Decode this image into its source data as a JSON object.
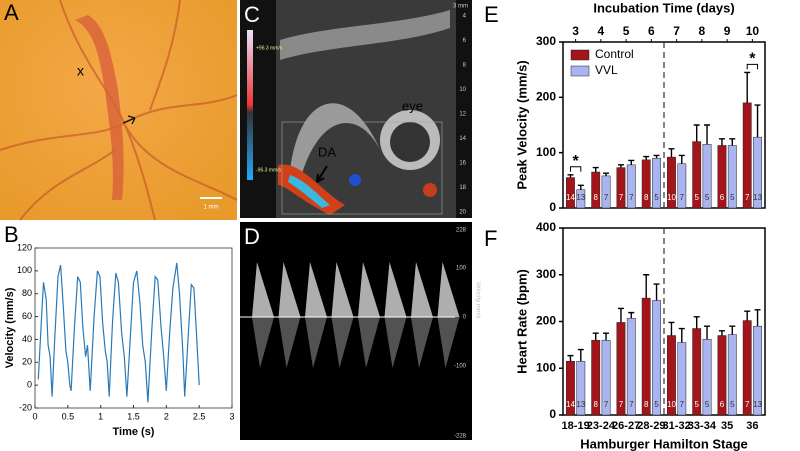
{
  "panel_labels": [
    "A",
    "B",
    "C",
    "D",
    "E",
    "F"
  ],
  "images": {
    "A": {
      "marker": "x",
      "scale": "1 mm"
    },
    "C": {
      "depth_unit": "3 mm",
      "depth_ticks": [
        4,
        6,
        8,
        10,
        12,
        14,
        16,
        18,
        20
      ],
      "vel_max": "+96.3 mm/s",
      "vel_min": "-96.3 mm/s",
      "eye": "eye",
      "vessel": "DA"
    },
    "D": {
      "scale": [
        "228",
        "100",
        "0",
        "-100",
        "-228"
      ],
      "axis_title": "Velocity mm/s"
    }
  },
  "chart_data": [
    {
      "type": "line",
      "xlabel": "Time (s)",
      "ylabel": "Velocity (mm/s)",
      "color": "#2a7ab8",
      "xlim": [
        0,
        3
      ],
      "xticks": [
        0,
        0.5,
        1,
        1.5,
        2,
        2.5,
        3
      ],
      "ylim": [
        -20,
        120
      ],
      "yticks": [
        -20,
        0,
        20,
        40,
        60,
        80,
        100,
        120
      ],
      "x": [
        0.05,
        0.1,
        0.13,
        0.17,
        0.2,
        0.23,
        0.26,
        0.3,
        0.35,
        0.39,
        0.43,
        0.47,
        0.5,
        0.53,
        0.55,
        0.6,
        0.65,
        0.69,
        0.73,
        0.77,
        0.8,
        0.84,
        0.9,
        0.95,
        0.99,
        1.03,
        1.07,
        1.1,
        1.13,
        1.18,
        1.23,
        1.27,
        1.32,
        1.36,
        1.4,
        1.45,
        1.5,
        1.55,
        1.6,
        1.64,
        1.68,
        1.72,
        1.78,
        1.83,
        1.87,
        1.92,
        1.96,
        2.0,
        2.05,
        2.1,
        2.16,
        2.2,
        2.25,
        2.28,
        2.33,
        2.38,
        2.42,
        2.46,
        2.5
      ],
      "values": [
        5,
        60,
        90,
        75,
        35,
        25,
        -10,
        40,
        95,
        105,
        70,
        30,
        20,
        0,
        -5,
        50,
        95,
        90,
        50,
        25,
        35,
        -5,
        60,
        100,
        95,
        55,
        30,
        20,
        -10,
        55,
        98,
        90,
        45,
        25,
        -10,
        40,
        90,
        100,
        70,
        35,
        20,
        -15,
        50,
        95,
        92,
        50,
        25,
        -5,
        45,
        85,
        107,
        80,
        30,
        -10,
        40,
        88,
        85,
        45,
        0
      ]
    },
    {
      "type": "bar",
      "ylabel": "Peak Velocity (mm/s)",
      "top_xlabel": "Incubation Time (days)",
      "top_categories": [
        3,
        4,
        5,
        6,
        7,
        8,
        9,
        10
      ],
      "ylim": [
        0,
        300
      ],
      "yticks": [
        0,
        100,
        200,
        300
      ],
      "legend": "upper left",
      "series": [
        {
          "name": "Control",
          "color": "#a3141b",
          "values": [
            55,
            65,
            73,
            87,
            92,
            120,
            113,
            190
          ],
          "errors": [
            5,
            8,
            5,
            6,
            15,
            30,
            12,
            55
          ],
          "n": [
            14,
            8,
            7,
            8,
            10,
            5,
            6,
            7
          ]
        },
        {
          "name": "VVL",
          "color": "#a9b4f0",
          "values": [
            33,
            58,
            78,
            90,
            80,
            115,
            113,
            128
          ],
          "errors": [
            8,
            5,
            8,
            5,
            15,
            35,
            12,
            58
          ],
          "n": [
            13,
            7,
            7,
            5,
            7,
            5,
            5,
            13
          ]
        }
      ],
      "annotations": [
        {
          "text": "*",
          "category": 0
        },
        {
          "text": "*",
          "category": 7
        }
      ]
    },
    {
      "type": "bar",
      "ylabel": "Heart Rate (bpm)",
      "xlabel": "Hamburger Hamilton Stage",
      "categories": [
        "18-19",
        "23-24",
        "26-27",
        "28-29",
        "31-32",
        "33-34",
        "35",
        "36"
      ],
      "ylim": [
        0,
        400
      ],
      "yticks": [
        0,
        100,
        200,
        300,
        400
      ],
      "series": [
        {
          "name": "Control",
          "color": "#a3141b",
          "values": [
            115,
            160,
            198,
            250,
            170,
            185,
            170,
            202
          ],
          "errors": [
            12,
            15,
            30,
            50,
            28,
            25,
            10,
            20
          ],
          "n": [
            14,
            8,
            7,
            8,
            10,
            5,
            6,
            7
          ]
        },
        {
          "name": "VVL",
          "color": "#a9b4f0",
          "values": [
            115,
            160,
            207,
            245,
            155,
            162,
            172,
            190
          ],
          "errors": [
            25,
            15,
            12,
            35,
            30,
            28,
            18,
            35
          ],
          "n": [
            13,
            7,
            7,
            5,
            7,
            5,
            5,
            13
          ]
        }
      ]
    }
  ]
}
